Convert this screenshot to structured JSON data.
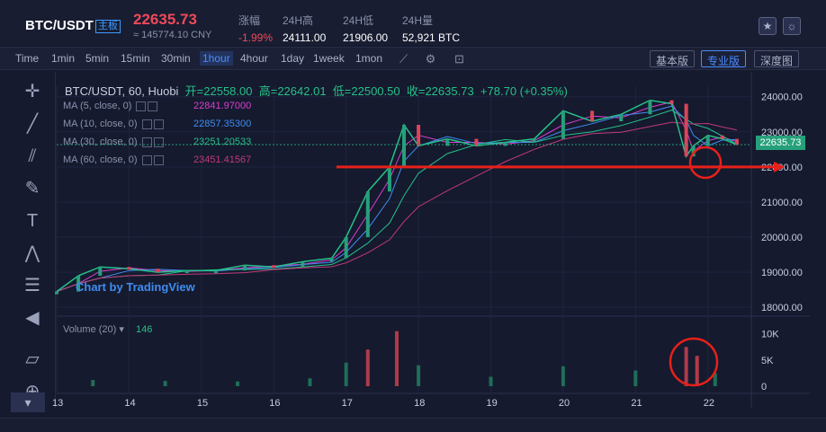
{
  "header": {
    "pair": "BTC/USDT",
    "board": "主板",
    "price": "22635.73",
    "cny": "≈ 145774.10 CNY",
    "stats": [
      {
        "key": "涨幅",
        "value": "-1.99%",
        "color": "#f04a5a"
      },
      {
        "key": "24H高",
        "value": "24111.00"
      },
      {
        "key": "24H低",
        "value": "21906.00"
      },
      {
        "key": "24H量",
        "value": "52,921 BTC"
      }
    ],
    "icons": [
      "star-icon",
      "theme-icon"
    ]
  },
  "toolbar": {
    "timeframes": [
      "Time",
      "1min",
      "5min",
      "15min",
      "30min",
      "1hour",
      "4hour",
      "1day",
      "1week",
      "1mon"
    ],
    "active": "1hour",
    "views": [
      "基本版",
      "专业版",
      "深度图"
    ],
    "active_view": "专业版"
  },
  "legend": {
    "title": "BTC/USDT, 60, Huobi",
    "open": "开=22558.00",
    "high": "高=22642.01",
    "low": "低=22500.50",
    "close": "收=22635.73",
    "change": "+78.70 (+0.35%)",
    "ma": [
      {
        "label": "MA (5, close, 0)",
        "value": "22841.97000",
        "color": "#d93dd0"
      },
      {
        "label": "MA (10, close, 0)",
        "value": "22857.35300",
        "color": "#3f8cf0"
      },
      {
        "label": "MA (30, close, 0)",
        "value": "23251.20533",
        "color": "#26c08a"
      },
      {
        "label": "MA (60, close, 0)",
        "value": "23451.41567",
        "color": "#c0397a"
      }
    ],
    "volume_label": "Volume (20)",
    "volume_value": "146",
    "watermark": "Chart by TradingView"
  },
  "last_price_tag": "22635.73",
  "chart_data": {
    "type": "line",
    "title": "",
    "x_ticks": [
      "13",
      "14",
      "15",
      "16",
      "17",
      "18",
      "19",
      "20",
      "21",
      "22"
    ],
    "y_ticks": [
      18000,
      19000,
      20000,
      21000,
      22000,
      23000,
      24000
    ],
    "y_tick_labels": [
      "18000.00",
      "19000.00",
      "20000.00",
      "21000.00",
      "22000.00",
      "23000.00",
      "24000.00"
    ],
    "ylim": [
      17800,
      24300
    ],
    "volume_ticks": [
      "0",
      "5K",
      "10K"
    ],
    "volume_ylim": [
      0,
      12000
    ],
    "series": [
      {
        "name": "BTC/USDT",
        "x": [
          13,
          13.3,
          13.6,
          14,
          14.4,
          14.8,
          15.2,
          15.6,
          16,
          16.4,
          16.8,
          17.0,
          17.3,
          17.6,
          17.8,
          18.0,
          18.4,
          18.8,
          19.2,
          19.6,
          20.0,
          20.4,
          20.8,
          21.2,
          21.5,
          21.7,
          21.8,
          22.0,
          22.2,
          22.4
        ],
        "values": [
          18450,
          18900,
          19150,
          19100,
          19000,
          19050,
          19050,
          19200,
          19150,
          19300,
          19400,
          20000,
          21300,
          22000,
          23200,
          22600,
          22800,
          22600,
          22700,
          22800,
          23600,
          23300,
          23500,
          23900,
          23800,
          22300,
          22600,
          22900,
          22800,
          22636
        ]
      }
    ],
    "volume": [
      {
        "x": 13.5,
        "value": 1200
      },
      {
        "x": 14.5,
        "value": 1000
      },
      {
        "x": 15.5,
        "value": 900
      },
      {
        "x": 16.5,
        "value": 1500
      },
      {
        "x": 17.0,
        "value": 4500
      },
      {
        "x": 17.3,
        "value": 7000
      },
      {
        "x": 17.7,
        "value": 10500
      },
      {
        "x": 18.0,
        "value": 4000
      },
      {
        "x": 19.0,
        "value": 1800
      },
      {
        "x": 20.0,
        "value": 3800
      },
      {
        "x": 21.0,
        "value": 3000
      },
      {
        "x": 21.7,
        "value": 7500
      },
      {
        "x": 21.85,
        "value": 5800
      },
      {
        "x": 22.1,
        "value": 2500
      }
    ],
    "annotations": {
      "horizontal_line_value": 22000,
      "circles": [
        "price-dip",
        "volume-spike"
      ]
    },
    "grid": true
  }
}
